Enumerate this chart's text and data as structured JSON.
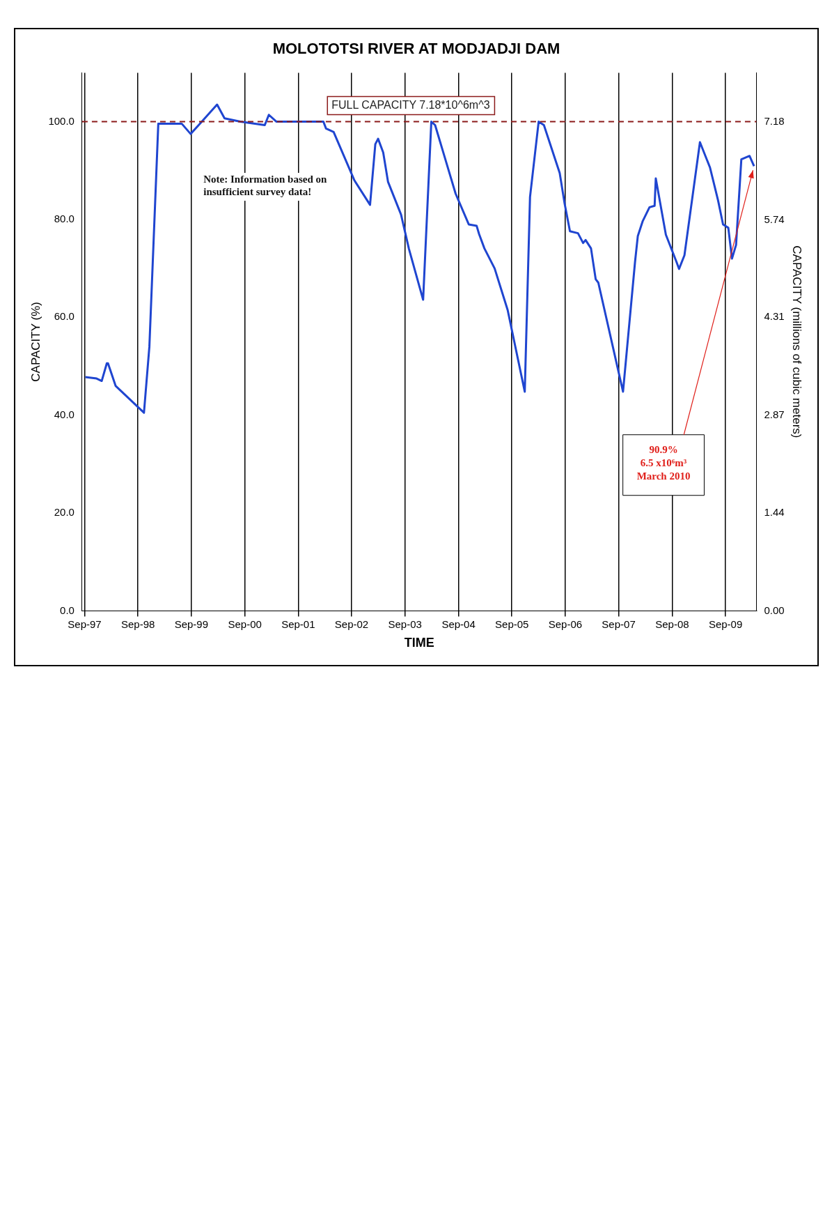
{
  "chart_data": {
    "type": "line",
    "title": "MOLOTOTSI RIVER AT MODJADJI DAM",
    "xlabel": "TIME",
    "ylabel": "CAPACITY (%)",
    "y2label": "CAPACITY (millions of cubic meters)",
    "xlim": [
      "1997-08-15",
      "2010-03-31"
    ],
    "xticks": [
      {
        "value": "1997-09",
        "label": "Sep-97"
      },
      {
        "value": "1998-09",
        "label": "Sep-98"
      },
      {
        "value": "1999-09",
        "label": "Sep-99"
      },
      {
        "value": "2000-09",
        "label": "Sep-00"
      },
      {
        "value": "2001-09",
        "label": "Sep-01"
      },
      {
        "value": "2002-09",
        "label": "Sep-02"
      },
      {
        "value": "2003-09",
        "label": "Sep-03"
      },
      {
        "value": "2004-09",
        "label": "Sep-04"
      },
      {
        "value": "2005-09",
        "label": "Sep-05"
      },
      {
        "value": "2006-09",
        "label": "Sep-06"
      },
      {
        "value": "2007-09",
        "label": "Sep-07"
      },
      {
        "value": "2008-09",
        "label": "Sep-08"
      },
      {
        "value": "2009-09",
        "label": "Sep-09"
      }
    ],
    "ylim": [
      0,
      110
    ],
    "yticks": [
      {
        "value": 0,
        "label": "0.0"
      },
      {
        "value": 20,
        "label": "20.0"
      },
      {
        "value": 40,
        "label": "40.0"
      },
      {
        "value": 60,
        "label": "60.0"
      },
      {
        "value": 80,
        "label": "80.0"
      },
      {
        "value": 100,
        "label": "100.0"
      }
    ],
    "y2lim": [
      0,
      7.9
    ],
    "y2ticks": [
      {
        "value": 0,
        "label": "0.00"
      },
      {
        "value": 1.44,
        "label": "1.44"
      },
      {
        "value": 2.87,
        "label": "2.87"
      },
      {
        "value": 4.31,
        "label": "4.31"
      },
      {
        "value": 5.74,
        "label": "5.74"
      },
      {
        "value": 7.18,
        "label": "7.18"
      }
    ],
    "grid": "x",
    "legend": false,
    "marker": "none",
    "line_style": "solid",
    "series": [
      {
        "color": "#1f45d0",
        "x": [
          "1997-09-06",
          "1997-11-22",
          "1997-12-27",
          "1998-01-31",
          "1998-02-08",
          "1998-04-01",
          "1998-10-12",
          "1998-11-18",
          "1999-01-18",
          "1999-06-27",
          "1999-08-27",
          "1999-10-21",
          "2000-02-24",
          "2000-04-15",
          "2000-08-01",
          "2001-01-15",
          "2001-02-12",
          "2001-04-05",
          "2002-02-20",
          "2002-03-10",
          "2002-05-01",
          "2002-09-20",
          "2003-01-05",
          "2003-02-10",
          "2003-03-01",
          "2003-04-05",
          "2003-05-08",
          "2003-08-05",
          "2003-09-28",
          "2004-01-03",
          "2004-02-28",
          "2004-03-25",
          "2004-06-03",
          "2004-08-12",
          "2004-11-10",
          "2005-01-03",
          "2005-01-20",
          "2005-02-25",
          "2005-05-06",
          "2005-08-03",
          "2005-11-28",
          "2006-01-03",
          "2006-03-03",
          "2006-04-08",
          "2006-07-25",
          "2006-08-28",
          "2006-10-03",
          "2006-11-27",
          "2007-01-01",
          "2007-01-18",
          "2007-02-24",
          "2007-03-28",
          "2007-04-15",
          "2007-10-01",
          "2007-12-22",
          "2008-01-10",
          "2008-02-13",
          "2008-03-30",
          "2008-05-04",
          "2008-05-12",
          "2008-07-20",
          "2008-10-01",
          "2008-10-18",
          "2008-11-24",
          "2009-03-10",
          "2009-05-18",
          "2009-07-12",
          "2009-08-15",
          "2009-09-20",
          "2009-10-15",
          "2009-11-12",
          "2009-12-18",
          "2010-02-12",
          "2010-03-15"
        ],
        "values": [
          47.8,
          47.5,
          47,
          50.6,
          50.6,
          46,
          40.5,
          54,
          99.6,
          99.6,
          97.5,
          99.3,
          103.5,
          100.7,
          100,
          99.3,
          101.4,
          100,
          100,
          98.6,
          97.9,
          88,
          83,
          95.4,
          96.5,
          93.7,
          87.7,
          81,
          74,
          63.6,
          100,
          99.3,
          92.3,
          85.3,
          79,
          78.7,
          77,
          74.1,
          70,
          61.5,
          44.8,
          84.6,
          100,
          99.3,
          89.5,
          83.2,
          77.6,
          77.2,
          75.2,
          75.8,
          74.1,
          67.8,
          67.1,
          44.8,
          71.3,
          76.6,
          79.7,
          82.5,
          82.8,
          88.4,
          76.9,
          71.3,
          69.9,
          72.7,
          95.8,
          90.6,
          83.9,
          79,
          78.3,
          72,
          74.8,
          92.3,
          93,
          90.9
        ]
      }
    ],
    "ref_lines": [
      {
        "axis": "y",
        "value": 100,
        "label": "FULL CAPACITY 7.18*10^6m^3",
        "color": "#8b1a1a",
        "line_style": "dashed"
      }
    ],
    "annotations": [
      "Note: Information based on insufficient survey data!",
      {
        "text": "90.9%\n6.5 x10⁶m³\nMarch 2010",
        "x": "2010-03-15",
        "y": 90.9
      }
    ]
  }
}
